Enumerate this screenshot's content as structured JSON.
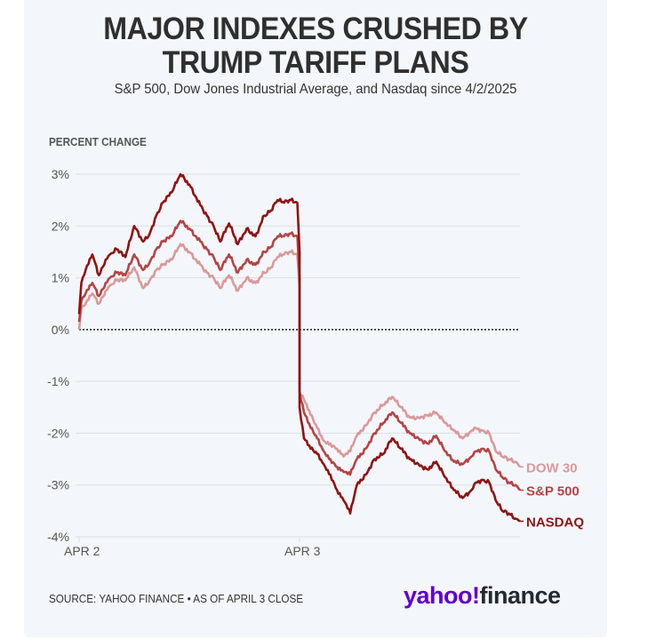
{
  "header": {
    "title_line1": "MAJOR INDEXES CRUSHED BY",
    "title_line2": "TRUMP TARIFF PLANS",
    "subtitle": "S&P 500, Dow Jones Industrial Average, and Nasdaq since 4/2/2025"
  },
  "footer": {
    "source": "SOURCE: YAHOO FINANCE • AS OF APRIL 3 CLOSE",
    "logo_part1": "yahoo!",
    "logo_part2": "finance"
  },
  "colors": {
    "nasdaq": "#8f1313",
    "sp500": "#b44444",
    "dow": "#d89a9a",
    "grid": "#dcdfe3",
    "axis_text": "#555555",
    "logo_purple": "#6001d2"
  },
  "chart_data": {
    "type": "line",
    "title": "MAJOR INDEXES CRUSHED BY TRUMP TARIFF PLANS",
    "subtitle": "S&P 500, Dow Jones Industrial Average, and Nasdaq since 4/2/2025",
    "ylabel": "PERCENT CHANGE",
    "xlabel": "",
    "ylim": [
      -4,
      3
    ],
    "yticks": [
      3,
      2,
      1,
      0,
      -1,
      -2,
      -3,
      -4
    ],
    "ytick_labels": [
      "3%",
      "2%",
      "1%",
      "0%",
      "-1%",
      "-2%",
      "-3%",
      "-4%"
    ],
    "xlim": [
      0,
      2
    ],
    "xticks": [
      0,
      1
    ],
    "xtick_labels": [
      "APR 2",
      "APR 3"
    ],
    "x_unit": "trading sessions since Apr 2 open (1 = Apr 3 open)",
    "grid": true,
    "zero_line": "dotted",
    "legend": "direct labels at right end of lines",
    "series": [
      {
        "name": "NASDAQ",
        "x": [
          0,
          0.01,
          0.03,
          0.06,
          0.09,
          0.12,
          0.14,
          0.17,
          0.21,
          0.25,
          0.29,
          0.32,
          0.35,
          0.38,
          0.42,
          0.46,
          0.5,
          0.55,
          0.58,
          0.61,
          0.64,
          0.68,
          0.72,
          0.76,
          0.8,
          0.84,
          0.87,
          0.9,
          0.93,
          0.96,
          0.99,
          1.0,
          1.0,
          1.02,
          1.05,
          1.08,
          1.11,
          1.14,
          1.17,
          1.2,
          1.23,
          1.26,
          1.3,
          1.34,
          1.38,
          1.42,
          1.46,
          1.5,
          1.54,
          1.58,
          1.62,
          1.66,
          1.7,
          1.74,
          1.78,
          1.8,
          1.83,
          1.86,
          1.89,
          1.92,
          1.95,
          1.98,
          2.0
        ],
        "values": [
          0.3,
          0.9,
          1.15,
          1.45,
          1.05,
          1.35,
          1.45,
          1.55,
          1.4,
          2.0,
          1.7,
          1.85,
          2.2,
          2.45,
          2.65,
          3.0,
          2.8,
          2.4,
          2.2,
          2.0,
          1.7,
          2.05,
          1.65,
          1.95,
          1.8,
          2.2,
          2.3,
          2.5,
          2.45,
          2.5,
          2.45,
          1.5,
          -1.5,
          -2.1,
          -2.3,
          -2.4,
          -2.6,
          -2.8,
          -3.1,
          -3.3,
          -3.55,
          -3.0,
          -2.8,
          -2.5,
          -2.4,
          -2.1,
          -2.3,
          -2.5,
          -2.6,
          -2.7,
          -2.55,
          -2.85,
          -3.1,
          -3.25,
          -3.1,
          -2.95,
          -2.9,
          -2.95,
          -3.3,
          -3.5,
          -3.55,
          -3.65,
          -3.7
        ]
      },
      {
        "name": "S&P 500",
        "x": [
          0,
          0.01,
          0.03,
          0.06,
          0.09,
          0.12,
          0.14,
          0.17,
          0.21,
          0.25,
          0.29,
          0.32,
          0.35,
          0.38,
          0.42,
          0.46,
          0.5,
          0.55,
          0.58,
          0.61,
          0.64,
          0.68,
          0.72,
          0.76,
          0.8,
          0.84,
          0.87,
          0.9,
          0.93,
          0.96,
          0.99,
          1.0,
          1.0,
          1.02,
          1.05,
          1.08,
          1.11,
          1.14,
          1.17,
          1.2,
          1.23,
          1.26,
          1.3,
          1.34,
          1.38,
          1.42,
          1.46,
          1.5,
          1.54,
          1.58,
          1.62,
          1.66,
          1.7,
          1.74,
          1.78,
          1.8,
          1.83,
          1.86,
          1.89,
          1.92,
          1.95,
          1.98,
          2.0
        ],
        "values": [
          0.15,
          0.55,
          0.7,
          0.9,
          0.65,
          0.9,
          1.0,
          1.1,
          1.05,
          1.45,
          1.15,
          1.3,
          1.55,
          1.7,
          1.8,
          2.1,
          1.95,
          1.7,
          1.55,
          1.4,
          1.15,
          1.45,
          1.1,
          1.35,
          1.25,
          1.5,
          1.6,
          1.8,
          1.8,
          1.85,
          1.8,
          1.0,
          -1.2,
          -1.6,
          -1.9,
          -2.1,
          -2.35,
          -2.5,
          -2.65,
          -2.75,
          -2.8,
          -2.5,
          -2.3,
          -2.0,
          -1.8,
          -1.6,
          -1.8,
          -2.0,
          -2.1,
          -2.2,
          -2.05,
          -2.35,
          -2.55,
          -2.6,
          -2.45,
          -2.35,
          -2.3,
          -2.35,
          -2.7,
          -2.85,
          -2.95,
          -3.0,
          -3.1
        ]
      },
      {
        "name": "DOW 30",
        "x": [
          0,
          0.01,
          0.03,
          0.06,
          0.09,
          0.12,
          0.14,
          0.17,
          0.21,
          0.25,
          0.29,
          0.32,
          0.35,
          0.38,
          0.42,
          0.46,
          0.5,
          0.55,
          0.58,
          0.61,
          0.64,
          0.68,
          0.72,
          0.76,
          0.8,
          0.84,
          0.87,
          0.9,
          0.93,
          0.96,
          0.99,
          1.0,
          1.0,
          1.02,
          1.05,
          1.08,
          1.11,
          1.14,
          1.17,
          1.2,
          1.23,
          1.26,
          1.3,
          1.34,
          1.38,
          1.42,
          1.46,
          1.5,
          1.54,
          1.58,
          1.62,
          1.66,
          1.7,
          1.74,
          1.78,
          1.8,
          1.83,
          1.86,
          1.89,
          1.92,
          1.95,
          1.98,
          2.0
        ],
        "values": [
          0.0,
          0.4,
          0.5,
          0.7,
          0.5,
          0.75,
          0.85,
          0.95,
          0.95,
          1.2,
          0.8,
          0.95,
          1.15,
          1.25,
          1.35,
          1.65,
          1.5,
          1.25,
          1.1,
          1.0,
          0.8,
          1.05,
          0.75,
          1.0,
          0.9,
          1.1,
          1.2,
          1.4,
          1.45,
          1.5,
          1.45,
          0.8,
          -1.2,
          -1.35,
          -1.65,
          -1.9,
          -2.15,
          -2.2,
          -2.3,
          -2.45,
          -2.35,
          -2.05,
          -1.85,
          -1.6,
          -1.45,
          -1.3,
          -1.5,
          -1.7,
          -1.7,
          -1.65,
          -1.6,
          -1.8,
          -1.95,
          -2.1,
          -1.95,
          -1.9,
          -1.95,
          -2.0,
          -2.35,
          -2.45,
          -2.5,
          -2.55,
          -2.65
        ]
      }
    ]
  }
}
